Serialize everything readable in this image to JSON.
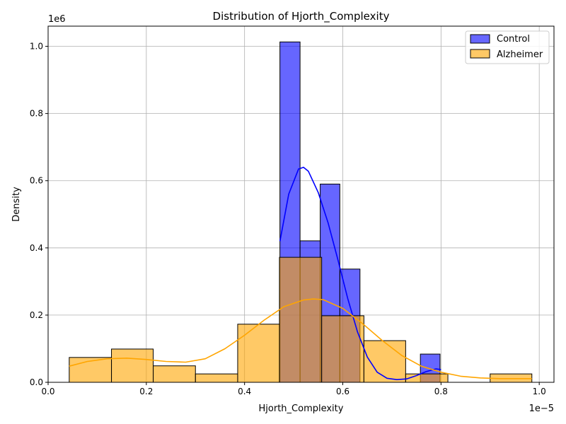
{
  "chart_data": {
    "type": "histogram",
    "title": "Distribution of Hjorth_Complexity",
    "xlabel": "Hjorth_Complexity",
    "ylabel": "Density",
    "x_offset_text": "1e−5",
    "y_offset_text": "1e6",
    "x_scale": 1e-05,
    "y_scale": 1000000,
    "xlim": [
      0.0,
      1.03
    ],
    "ylim": [
      0.0,
      1.06
    ],
    "x_ticks": [
      0.0,
      0.2,
      0.4,
      0.6,
      0.8,
      1.0
    ],
    "x_tick_labels": [
      "0.0",
      "0.2",
      "0.4",
      "0.6",
      "0.8",
      "1.0"
    ],
    "y_ticks": [
      0.0,
      0.2,
      0.4,
      0.6,
      0.8,
      1.0
    ],
    "y_tick_labels": [
      "0.0",
      "0.2",
      "0.4",
      "0.6",
      "0.8",
      "1.0"
    ],
    "grid": true,
    "legend_position": "top-right",
    "series": [
      {
        "name": "Control",
        "color": "#0000ff",
        "bins": [
          {
            "x0": 0.472,
            "x1": 0.513,
            "value": 1.013
          },
          {
            "x0": 0.513,
            "x1": 0.554,
            "value": 0.421
          },
          {
            "x0": 0.554,
            "x1": 0.594,
            "value": 0.59
          },
          {
            "x0": 0.594,
            "x1": 0.635,
            "value": 0.337
          },
          {
            "x0": 0.635,
            "x1": 0.676,
            "value": 0.0
          },
          {
            "x0": 0.676,
            "x1": 0.717,
            "value": 0.0
          },
          {
            "x0": 0.717,
            "x1": 0.758,
            "value": 0.0
          },
          {
            "x0": 0.758,
            "x1": 0.798,
            "value": 0.084
          }
        ],
        "kde": {
          "x": [
            0.472,
            0.49,
            0.51,
            0.52,
            0.53,
            0.55,
            0.57,
            0.59,
            0.61,
            0.63,
            0.65,
            0.67,
            0.69,
            0.71,
            0.73,
            0.75,
            0.77,
            0.79,
            0.8
          ],
          "y": [
            0.42,
            0.56,
            0.635,
            0.64,
            0.628,
            0.565,
            0.475,
            0.365,
            0.25,
            0.15,
            0.075,
            0.03,
            0.012,
            0.008,
            0.01,
            0.02,
            0.032,
            0.04,
            0.038
          ]
        }
      },
      {
        "name": "Alzheimer",
        "color": "#ffa500",
        "bins": [
          {
            "x0": 0.043,
            "x1": 0.129,
            "value": 0.074
          },
          {
            "x0": 0.129,
            "x1": 0.214,
            "value": 0.099
          },
          {
            "x0": 0.214,
            "x1": 0.3,
            "value": 0.049
          },
          {
            "x0": 0.3,
            "x1": 0.386,
            "value": 0.025
          },
          {
            "x0": 0.386,
            "x1": 0.471,
            "value": 0.173
          },
          {
            "x0": 0.471,
            "x1": 0.557,
            "value": 0.372
          },
          {
            "x0": 0.557,
            "x1": 0.643,
            "value": 0.198
          },
          {
            "x0": 0.643,
            "x1": 0.728,
            "value": 0.124
          },
          {
            "x0": 0.728,
            "x1": 0.814,
            "value": 0.025
          },
          {
            "x0": 0.814,
            "x1": 0.9,
            "value": 0.0
          },
          {
            "x0": 0.9,
            "x1": 0.985,
            "value": 0.025
          }
        ],
        "kde": {
          "x": [
            0.043,
            0.08,
            0.12,
            0.16,
            0.2,
            0.24,
            0.28,
            0.32,
            0.36,
            0.4,
            0.44,
            0.48,
            0.52,
            0.54,
            0.56,
            0.6,
            0.64,
            0.68,
            0.72,
            0.76,
            0.8,
            0.84,
            0.88,
            0.92,
            0.96,
            0.985
          ],
          "y": [
            0.048,
            0.062,
            0.07,
            0.072,
            0.068,
            0.062,
            0.06,
            0.07,
            0.1,
            0.14,
            0.185,
            0.225,
            0.245,
            0.248,
            0.246,
            0.22,
            0.175,
            0.125,
            0.08,
            0.048,
            0.03,
            0.018,
            0.013,
            0.011,
            0.011,
            0.011
          ]
        }
      }
    ]
  }
}
